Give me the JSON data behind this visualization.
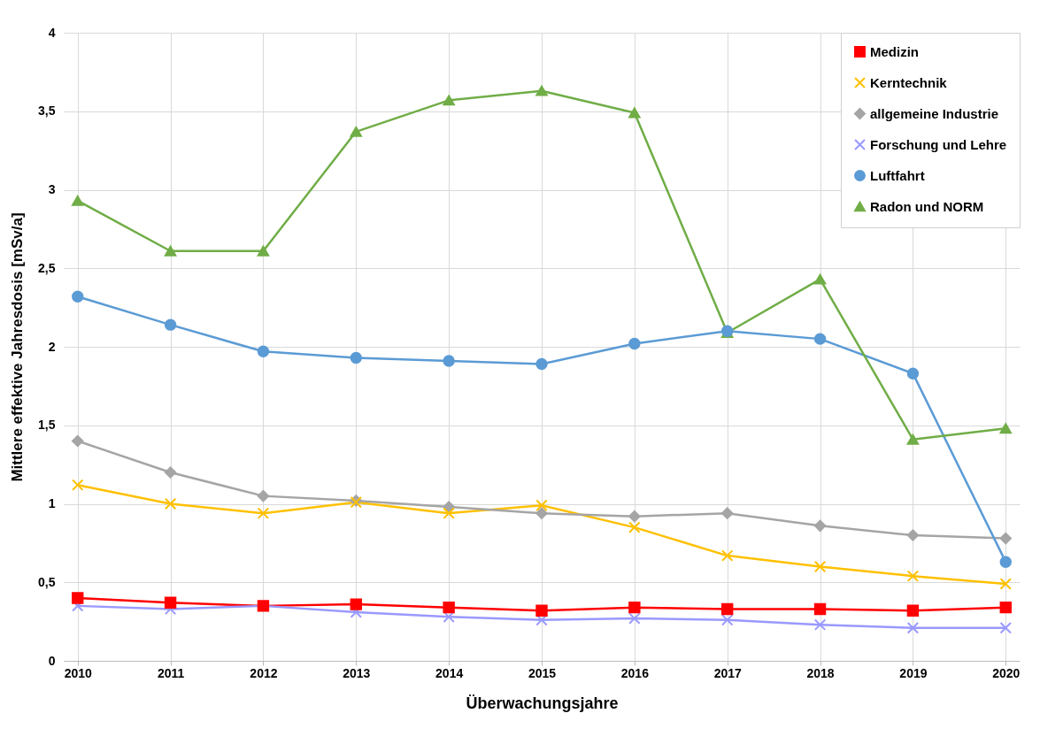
{
  "chart_data": {
    "type": "line",
    "xlabel": "Überwachungsjahre",
    "ylabel": "Mittlere effektive Jahresdosis [mSv/a]",
    "categories": [
      "2010",
      "2011",
      "2012",
      "2013",
      "2014",
      "2015",
      "2016",
      "2017",
      "2018",
      "2019",
      "2020"
    ],
    "series": [
      {
        "name": "Medizin",
        "color": "#ff0000",
        "marker": "square",
        "values": [
          0.4,
          0.37,
          0.35,
          0.36,
          0.34,
          0.32,
          0.34,
          0.33,
          0.33,
          0.32,
          0.34
        ]
      },
      {
        "name": "Kerntechnik",
        "color": "#ffc000",
        "marker": "cross",
        "values": [
          1.12,
          1.0,
          0.94,
          1.01,
          0.94,
          0.99,
          0.85,
          0.67,
          0.6,
          0.54,
          0.49
        ]
      },
      {
        "name": "allgemeine Industrie",
        "color": "#a5a5a5",
        "marker": "diamond",
        "values": [
          1.4,
          1.2,
          1.05,
          1.02,
          0.98,
          0.94,
          0.92,
          0.94,
          0.86,
          0.8,
          0.78
        ]
      },
      {
        "name": "Forschung und Lehre",
        "color": "#9999ff",
        "marker": "cross",
        "values": [
          0.35,
          0.33,
          0.35,
          0.31,
          0.28,
          0.26,
          0.27,
          0.26,
          0.23,
          0.21,
          0.21
        ]
      },
      {
        "name": "Luftfahrt",
        "color": "#5b9bd5",
        "marker": "circle",
        "values": [
          2.32,
          2.14,
          1.97,
          1.93,
          1.91,
          1.89,
          2.02,
          2.1,
          2.05,
          1.83,
          0.63
        ]
      },
      {
        "name": "Radon und NORM",
        "color": "#70ad47",
        "marker": "triangle",
        "values": [
          2.93,
          2.61,
          2.61,
          3.37,
          3.57,
          3.63,
          3.49,
          2.09,
          2.43,
          1.41,
          1.48
        ]
      }
    ],
    "ylim": [
      0,
      4
    ],
    "yticks": [
      0,
      {
        "value": 0.5,
        "label": "0,5"
      },
      1,
      {
        "value": 1.5,
        "label": "1,5"
      },
      2,
      {
        "value": 2.5,
        "label": "2,5"
      },
      3,
      {
        "value": 3.5,
        "label": "3,5"
      },
      4
    ],
    "grid": true,
    "legend": "top right",
    "line_style": "solid"
  }
}
